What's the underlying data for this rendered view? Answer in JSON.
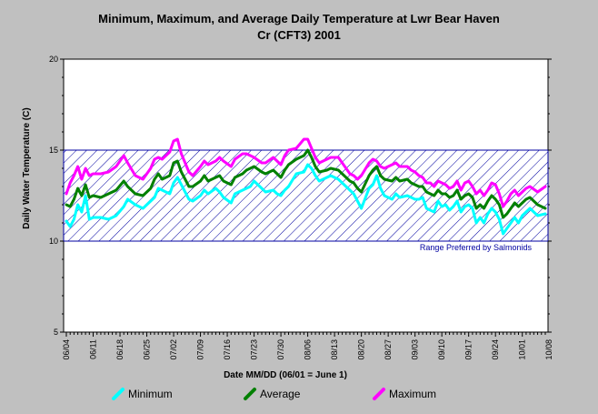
{
  "chart_data": {
    "type": "line",
    "title_line1": "Minimum, Maximum, and Average Daily Temperature at Lwr Bear Haven",
    "title_line2": "Cr (CFT3) 2001",
    "xlabel": "Date MM/DD (06/01 = June 1)",
    "ylabel": "Daily Water Temperature (C)",
    "ylim": [
      5,
      20
    ],
    "yticks": [
      "5",
      "10",
      "15",
      "20"
    ],
    "x_start_day": 4,
    "x_end_day": 129,
    "xtick_labels": [
      "06/04",
      "06/11",
      "06/18",
      "06/25",
      "07/02",
      "07/09",
      "07/16",
      "07/23",
      "07/30",
      "08/06",
      "08/13",
      "08/20",
      "08/27",
      "09/03",
      "09/10",
      "09/17",
      "09/24",
      "10/01",
      "10/08"
    ],
    "band": {
      "low": 10,
      "high": 15,
      "label": "Range Preferred by Salmonids",
      "color": "#0000a0"
    },
    "series": [
      {
        "name": "Minimum",
        "color": "#00ffff",
        "values": [
          11.1,
          10.8,
          11.2,
          12.0,
          11.6,
          12.5,
          11.2,
          11.3,
          11.3,
          11.2,
          11.4,
          11.9,
          12.3,
          12.0,
          11.8,
          12.2,
          12.4,
          12.9,
          12.8,
          12.6,
          13.2,
          13.5,
          13.1,
          12.7,
          12.3,
          12.2,
          12.5,
          12.8,
          12.6,
          12.9,
          12.7,
          12.4,
          12.1,
          12.6,
          12.8,
          12.9,
          13.0,
          13.3,
          12.9,
          12.7,
          12.8,
          12.6,
          12.5,
          12.8,
          13.0,
          13.7,
          13.8,
          14.2,
          14.0,
          13.6,
          13.3,
          13.5,
          13.6,
          13.4,
          13.0,
          12.8,
          12.6,
          12.2,
          11.8,
          12.9,
          13.1,
          13.6,
          12.9,
          12.5,
          12.3,
          12.6,
          12.4,
          12.5,
          12.4,
          12.3,
          12.3,
          12.4,
          11.8,
          11.7,
          11.6,
          12.2,
          11.9,
          12.0,
          11.7,
          11.9,
          12.2,
          11.6,
          11.9,
          12.0,
          11.8,
          11.0,
          11.3,
          11.0,
          11.5,
          11.8,
          11.6,
          11.2,
          10.4,
          10.7,
          11.0,
          11.3,
          11.0,
          11.4,
          11.6,
          11.8,
          11.4,
          11.5
        ],
        "x_days": [
          4,
          5,
          6,
          7,
          8,
          9,
          10,
          11,
          13,
          15,
          17,
          19,
          20,
          22,
          24,
          26,
          27,
          28,
          29,
          31,
          32,
          33,
          34,
          35,
          36,
          37,
          39,
          40,
          41,
          43,
          44,
          45,
          47,
          48,
          50,
          51,
          52,
          53,
          55,
          56,
          58,
          59,
          60,
          61,
          62,
          64,
          66,
          67,
          68,
          69,
          70,
          72,
          73,
          75,
          77,
          78,
          79,
          80,
          81,
          83,
          84,
          85,
          86,
          87,
          89,
          90,
          91,
          93,
          94,
          95,
          96,
          97,
          98,
          99,
          100,
          101,
          102,
          103,
          104,
          105,
          106,
          107,
          108,
          109,
          110,
          111,
          112,
          113,
          114,
          115,
          116,
          117,
          118,
          119,
          120,
          121,
          122,
          123,
          124,
          125,
          127,
          129
        ]
      },
      {
        "name": "Average",
        "color": "#008000",
        "values": [
          12.0,
          11.9,
          12.3,
          12.9,
          12.5,
          13.1,
          12.4,
          12.5,
          12.4,
          12.6,
          12.8,
          13.3,
          13.0,
          12.6,
          12.5,
          12.9,
          13.4,
          13.7,
          13.4,
          13.6,
          14.3,
          14.4,
          13.8,
          13.4,
          13.0,
          13.0,
          13.3,
          13.6,
          13.3,
          13.5,
          13.6,
          13.3,
          13.1,
          13.5,
          13.7,
          13.9,
          14.0,
          14.1,
          13.8,
          13.7,
          13.9,
          13.7,
          13.5,
          13.9,
          14.2,
          14.5,
          14.7,
          15.0,
          14.6,
          14.1,
          13.8,
          13.9,
          14.0,
          13.9,
          13.5,
          13.3,
          13.2,
          12.9,
          12.7,
          13.6,
          13.9,
          14.1,
          13.6,
          13.4,
          13.3,
          13.5,
          13.3,
          13.4,
          13.2,
          13.1,
          13.0,
          13.0,
          12.7,
          12.6,
          12.5,
          12.8,
          12.6,
          12.6,
          12.4,
          12.5,
          12.8,
          12.3,
          12.5,
          12.6,
          12.4,
          11.8,
          12.0,
          11.8,
          12.2,
          12.5,
          12.3,
          12.0,
          11.3,
          11.5,
          11.8,
          12.1,
          11.9,
          12.1,
          12.3,
          12.4,
          12.0,
          11.8
        ],
        "x_days": [
          4,
          5,
          6,
          7,
          8,
          9,
          10,
          11,
          13,
          15,
          17,
          19,
          20,
          22,
          24,
          26,
          27,
          28,
          29,
          31,
          32,
          33,
          34,
          35,
          36,
          37,
          39,
          40,
          41,
          43,
          44,
          45,
          47,
          48,
          50,
          51,
          52,
          53,
          55,
          56,
          58,
          59,
          60,
          61,
          62,
          64,
          66,
          67,
          68,
          69,
          70,
          72,
          73,
          75,
          77,
          78,
          79,
          80,
          81,
          83,
          84,
          85,
          86,
          87,
          89,
          90,
          91,
          93,
          94,
          95,
          96,
          97,
          98,
          99,
          100,
          101,
          102,
          103,
          104,
          105,
          106,
          107,
          108,
          109,
          110,
          111,
          112,
          113,
          114,
          115,
          116,
          117,
          118,
          119,
          120,
          121,
          122,
          123,
          124,
          125,
          127,
          129
        ]
      },
      {
        "name": "Maximum",
        "color": "#ff00ff",
        "values": [
          12.6,
          13.2,
          13.6,
          14.1,
          13.4,
          14.0,
          13.6,
          13.7,
          13.7,
          13.8,
          14.1,
          14.7,
          14.3,
          13.6,
          13.4,
          14.0,
          14.5,
          14.6,
          14.5,
          14.9,
          15.5,
          15.6,
          14.8,
          14.3,
          13.8,
          13.6,
          14.1,
          14.4,
          14.2,
          14.4,
          14.6,
          14.4,
          14.1,
          14.5,
          14.8,
          14.8,
          14.7,
          14.6,
          14.3,
          14.3,
          14.6,
          14.4,
          14.2,
          14.7,
          15.0,
          15.1,
          15.6,
          15.6,
          15.1,
          14.6,
          14.3,
          14.5,
          14.6,
          14.6,
          14.0,
          13.7,
          13.6,
          13.4,
          13.6,
          14.3,
          14.5,
          14.4,
          14.1,
          14.0,
          14.2,
          14.3,
          14.1,
          14.1,
          13.9,
          13.8,
          13.6,
          13.5,
          13.2,
          13.2,
          13.0,
          13.3,
          13.2,
          13.1,
          12.9,
          13.0,
          13.3,
          12.8,
          13.2,
          13.3,
          13.0,
          12.6,
          12.8,
          12.5,
          12.8,
          13.2,
          13.1,
          12.6,
          11.9,
          12.2,
          12.6,
          12.8,
          12.5,
          12.7,
          12.9,
          13.0,
          12.7,
          13.0
        ],
        "x_days": [
          4,
          5,
          6,
          7,
          8,
          9,
          10,
          11,
          13,
          15,
          17,
          19,
          20,
          22,
          24,
          26,
          27,
          28,
          29,
          31,
          32,
          33,
          34,
          35,
          36,
          37,
          39,
          40,
          41,
          43,
          44,
          45,
          47,
          48,
          50,
          51,
          52,
          53,
          55,
          56,
          58,
          59,
          60,
          61,
          62,
          64,
          66,
          67,
          68,
          69,
          70,
          72,
          73,
          75,
          77,
          78,
          79,
          80,
          81,
          83,
          84,
          85,
          86,
          87,
          89,
          90,
          91,
          93,
          94,
          95,
          96,
          97,
          98,
          99,
          100,
          101,
          102,
          103,
          104,
          105,
          106,
          107,
          108,
          109,
          110,
          111,
          112,
          113,
          114,
          115,
          116,
          117,
          118,
          119,
          120,
          121,
          122,
          123,
          124,
          125,
          127,
          129
        ]
      }
    ],
    "grid": false,
    "legend_position": "bottom"
  }
}
